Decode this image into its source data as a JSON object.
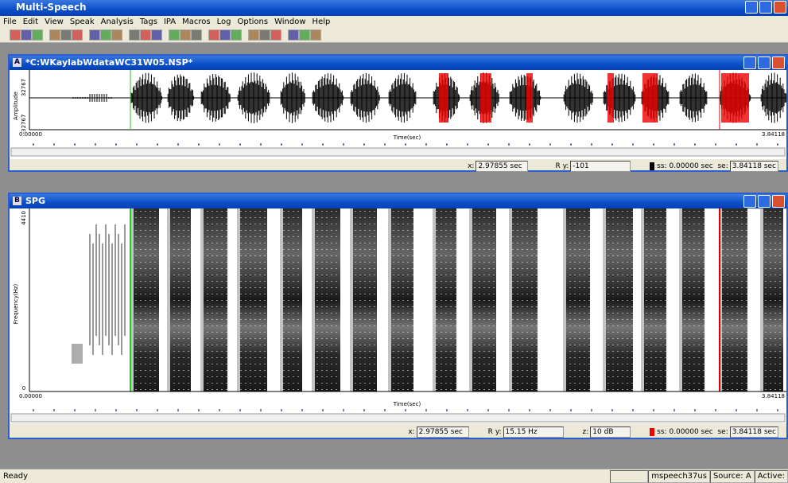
{
  "app": {
    "title": "Multi-Speech",
    "menu": [
      "File",
      "Edit",
      "View",
      "Speak",
      "Analysis",
      "Tags",
      "IPA",
      "Macros",
      "Log",
      "Options",
      "Window",
      "Help"
    ]
  },
  "window_a": {
    "badge": "A",
    "title": "*C:WKaylabWdataWC31W05.NSP*",
    "y_label": "Amplitude",
    "y_top": "32767",
    "y_bottom": "-32767",
    "x_start": "0.00000",
    "x_end": "3.84118",
    "x_label": "Time(sec)",
    "status": {
      "x_label": "x:",
      "x_value": "2.97855 sec",
      "r": "R",
      "y_label": "y:",
      "y_value": "-101",
      "ss_label": "ss:",
      "ss_value": "0.00000 sec",
      "se_label": "se:",
      "se_value": "3.84118 sec"
    }
  },
  "window_b": {
    "badge": "B",
    "title": "SPG",
    "y_label": "Frequency(Hz)",
    "y_top": "4410",
    "y_bottom": "0",
    "x_start": "0.00000",
    "x_end": "3.84118",
    "x_label": "Time(sec)",
    "status": {
      "x_label": "x:",
      "x_value": "2.97855 sec",
      "r": "R",
      "y_label": "y:",
      "y_value": "15.15 Hz",
      "z_label": "z:",
      "z_value": "10 dB",
      "ss_label": "ss:",
      "ss_value": "0.00000 sec",
      "se_label": "se:",
      "se_value": "3.84118 sec"
    }
  },
  "status_bar": {
    "message": "Ready",
    "panes": [
      "mspeech37us",
      "Source: A",
      "Active:"
    ]
  }
}
